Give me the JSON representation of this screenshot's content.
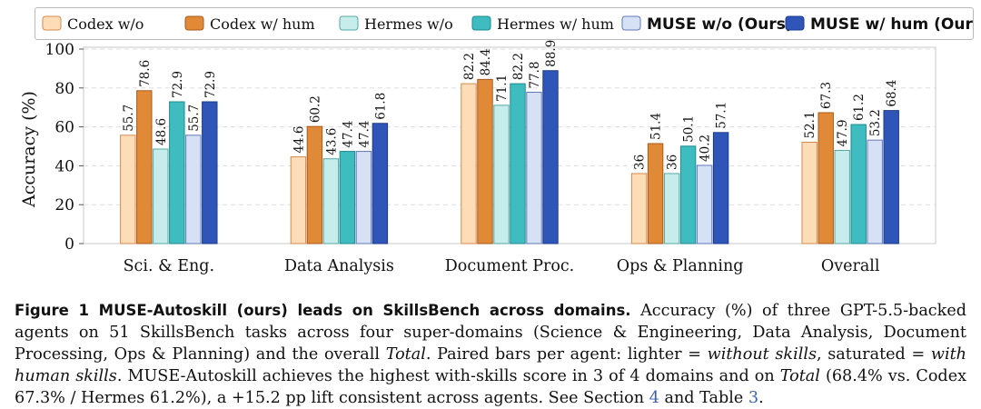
{
  "chart_data": {
    "type": "bar",
    "categories": [
      "Sci. & Eng.",
      "Data Analysis",
      "Document Proc.",
      "Ops & Planning",
      "Overall"
    ],
    "series": [
      {
        "name": "Codex w/o",
        "values": [
          55.7,
          44.6,
          82.2,
          36,
          52.1
        ],
        "color": "#fddcb8",
        "stroke": "#d58a4e",
        "value_labels": [
          "55.7",
          "44.6",
          "82.2",
          "36",
          "52.1"
        ]
      },
      {
        "name": "Codex w/ hum",
        "values": [
          78.6,
          60.2,
          84.4,
          51.4,
          67.3
        ],
        "color": "#e08a38",
        "stroke": "#a8591c",
        "value_labels": [
          "78.6",
          "60.2",
          "84.4",
          "51.4",
          "67.3"
        ]
      },
      {
        "name": "Hermes w/o",
        "values": [
          48.6,
          43.6,
          71.1,
          36,
          47.9
        ],
        "color": "#c6eceb",
        "stroke": "#55a8a6",
        "value_labels": [
          "48.6",
          "43.6",
          "71.1",
          "36",
          "47.9"
        ]
      },
      {
        "name": "Hermes w/ hum",
        "values": [
          72.9,
          47.4,
          82.2,
          50.1,
          61.2
        ],
        "color": "#3fbcc0",
        "stroke": "#1e8a8e",
        "value_labels": [
          "72.9",
          "47.4",
          "82.2",
          "50.1",
          "61.2"
        ]
      },
      {
        "name": "MUSE w/o (Ours)",
        "values": [
          55.7,
          47.4,
          77.8,
          40.2,
          53.2
        ],
        "color": "#d6e1f5",
        "stroke": "#6079b8",
        "value_labels": [
          "55.7",
          "47.4",
          "77.8",
          "40.2",
          "53.2"
        ]
      },
      {
        "name": "MUSE w/ hum (Ours)",
        "values": [
          72.9,
          61.8,
          88.9,
          57.1,
          68.4
        ],
        "color": "#2f55b8",
        "stroke": "#1b3a88",
        "value_labels": [
          "72.9",
          "61.8",
          "88.9",
          "57.1",
          "68.4"
        ]
      }
    ],
    "ylabel": "Accuracy (%)",
    "xlabel": "",
    "ylim": [
      0,
      100
    ],
    "yticks": [
      "0",
      "20",
      "40",
      "60",
      "80",
      "100"
    ],
    "grid": "horizontal dashed",
    "legend_position": "top"
  },
  "caption": {
    "label": "Figure 1 MUSE-Autoskill (ours) leads on SkillsBench across domains.",
    "text_1": "Accuracy (%) of three GPT-5.5-backed agents on 51 SkillsBench tasks across four super-domains (Science & Engineering, Data Analysis, Document Processing, Ops & Planning) and the overall",
    "total_1": "Total",
    "text_2": ". Paired bars per agent: lighter =",
    "without_skills": "without skills",
    "text_3": ", saturated =",
    "with_human": "with human skills",
    "text_4": ". MUSE-Autoskill achieves the highest with-skills score in 3 of 4 domains and on",
    "total_2": "Total",
    "text_5": "(68.4% vs. Codex 67.3% / Hermes 61.2%), a +15.2 pp lift consistent across agents. See Section",
    "section_ref": "4",
    "text_6": "and Table",
    "table_ref": "3",
    "text_7": "."
  }
}
